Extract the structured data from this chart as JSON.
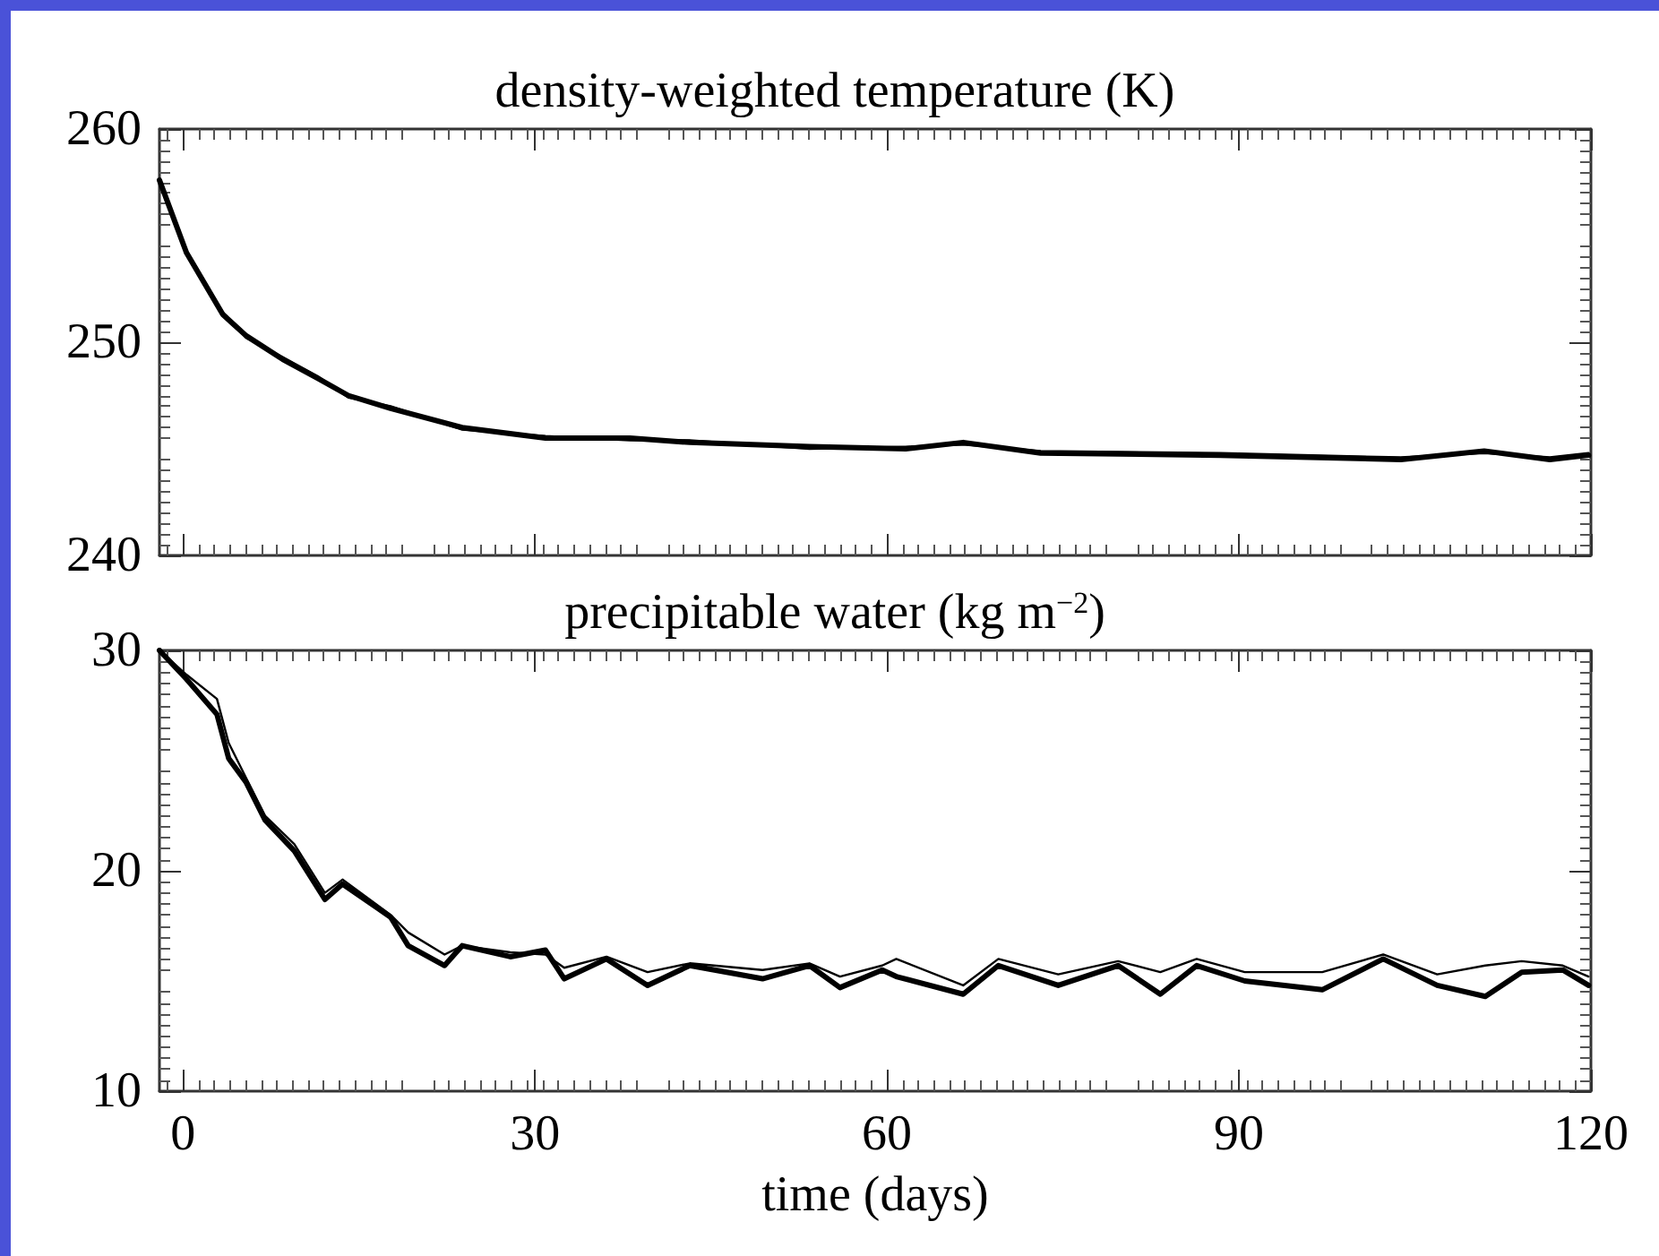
{
  "chart_data": [
    {
      "type": "line",
      "title": "density-weighted temperature (K)",
      "xlim": [
        -2,
        120
      ],
      "xticks": [
        0,
        30,
        60,
        90,
        120
      ],
      "ylim": [
        240,
        260
      ],
      "yticks": [
        240,
        250,
        260
      ],
      "tick_labels": "y",
      "grid": false,
      "marker": "none",
      "line_style": "solid",
      "x": [
        -2,
        0.3,
        3.4,
        5.4,
        8.5,
        11.5,
        14.1,
        17.7,
        23.8,
        30.9,
        38.1,
        43.2,
        53.4,
        61.6,
        66.5,
        73.1,
        88.4,
        103.8,
        110.9,
        116.5,
        119.8
      ],
      "series": [
        {
          "color": "#000000",
          "values": [
            257.6,
            254.2,
            251.3,
            250.3,
            249.2,
            248.3,
            247.5,
            246.9,
            246.0,
            245.5,
            245.5,
            245.3,
            245.1,
            245.0,
            245.3,
            244.8,
            244.7,
            244.5,
            244.9,
            244.5,
            244.7
          ]
        },
        {
          "color": "#000000",
          "values": [
            257.6,
            254.3,
            251.4,
            250.2,
            249.3,
            248.4,
            247.4,
            247.0,
            245.9,
            245.6,
            245.4,
            245.4,
            245.0,
            245.1,
            245.2,
            244.9,
            244.8,
            244.6,
            244.8,
            244.6,
            244.8
          ]
        }
      ]
    },
    {
      "type": "line",
      "title": "precipitable water (kg m$^{−2}$)",
      "xlabel": "time (days)",
      "xlim": [
        -2,
        120
      ],
      "xticks": [
        0,
        30,
        60,
        90,
        120
      ],
      "ylim": [
        10,
        30
      ],
      "yticks": [
        10,
        20,
        30
      ],
      "grid": false,
      "marker": "none",
      "line_style": "solid",
      "x": [
        -2,
        0.3,
        2.9,
        3.9,
        5.4,
        7.0,
        9.5,
        12.1,
        13.6,
        17.7,
        19.2,
        22.3,
        23.8,
        27.9,
        30.9,
        32.5,
        36.1,
        39.6,
        43.2,
        49.4,
        53.4,
        56.0,
        59.6,
        60.8,
        66.5,
        69.5,
        74.6,
        79.7,
        83.3,
        86.4,
        90.5,
        97.1,
        102.3,
        106.9,
        111.0,
        114.1,
        117.6,
        119.8
      ],
      "series": [
        {
          "color": "#000000",
          "values": [
            30.0,
            28.7,
            27.1,
            25.1,
            24.0,
            22.3,
            20.9,
            18.7,
            19.4,
            17.9,
            16.6,
            15.7,
            16.6,
            16.1,
            16.4,
            15.1,
            16.0,
            14.8,
            15.7,
            15.1,
            15.7,
            14.7,
            15.5,
            15.2,
            14.4,
            15.7,
            14.8,
            15.7,
            14.4,
            15.7,
            15.0,
            14.6,
            16.0,
            14.8,
            14.3,
            15.4,
            15.5,
            14.8
          ]
        },
        {
          "color": "#000000",
          "values": [
            30.0,
            28.9,
            27.8,
            25.8,
            24.2,
            22.5,
            21.2,
            19.0,
            19.6,
            18.0,
            17.2,
            16.2,
            16.6,
            16.3,
            16.2,
            15.6,
            16.1,
            15.4,
            15.8,
            15.5,
            15.8,
            15.2,
            15.7,
            16.0,
            14.8,
            16.0,
            15.3,
            15.9,
            15.4,
            16.0,
            15.4,
            15.4,
            16.2,
            15.3,
            15.7,
            15.9,
            15.7,
            15.2
          ]
        }
      ]
    }
  ]
}
